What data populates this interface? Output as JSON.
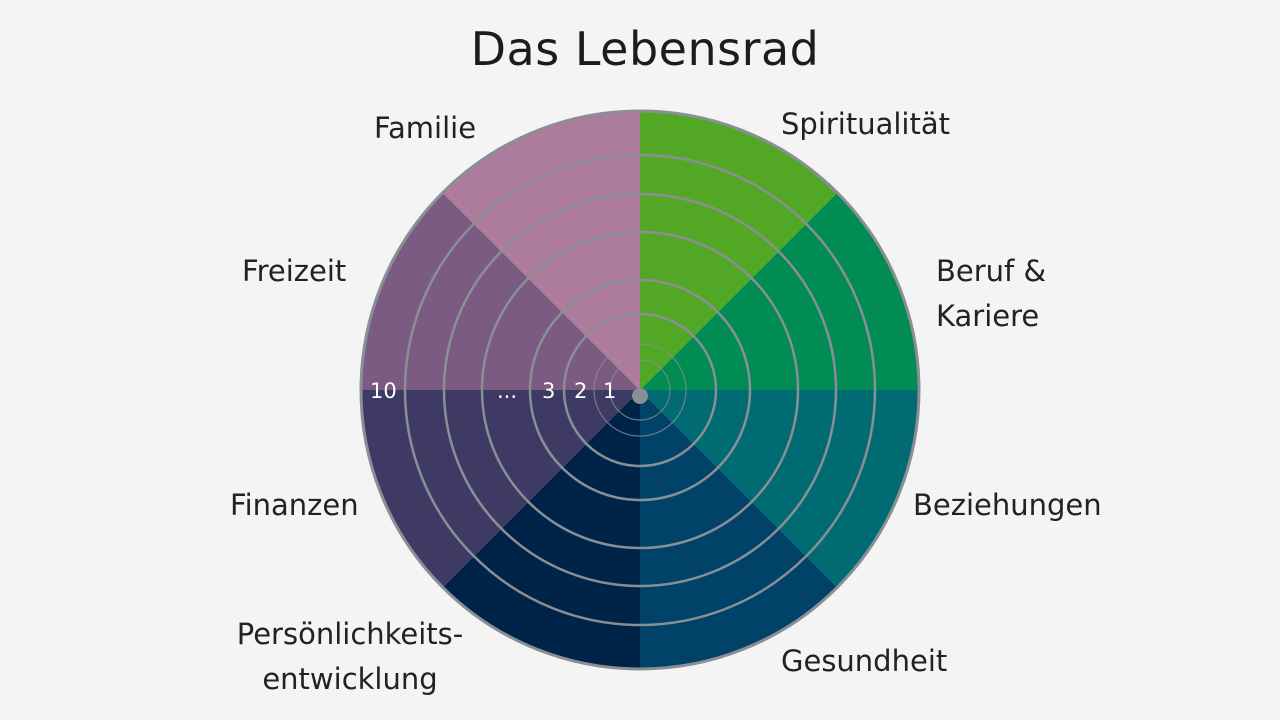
{
  "title": "Das Lebensrad",
  "segments": [
    {
      "label": "Spiritualität",
      "color": "#52a825"
    },
    {
      "label_lines": [
        "Beruf &",
        "Kariere"
      ],
      "color": "#008c52"
    },
    {
      "label": "Beziehungen",
      "color": "#006b73"
    },
    {
      "label": "Gesundheit",
      "color": "#004268"
    },
    {
      "label_lines": [
        "Persönlichkeits-",
        "entwicklung"
      ],
      "color": "#002447"
    },
    {
      "label": "Finanzen",
      "color": "#3f3a63"
    },
    {
      "label": "Freizeit",
      "color": "#7b5b82"
    },
    {
      "label": "Familie",
      "color": "#ad7b9b"
    }
  ],
  "ring_labels": [
    "1",
    "2",
    "3",
    "...",
    "10"
  ],
  "ring_color": "#8a8f96",
  "center_dot_color": "#8a8f96"
}
